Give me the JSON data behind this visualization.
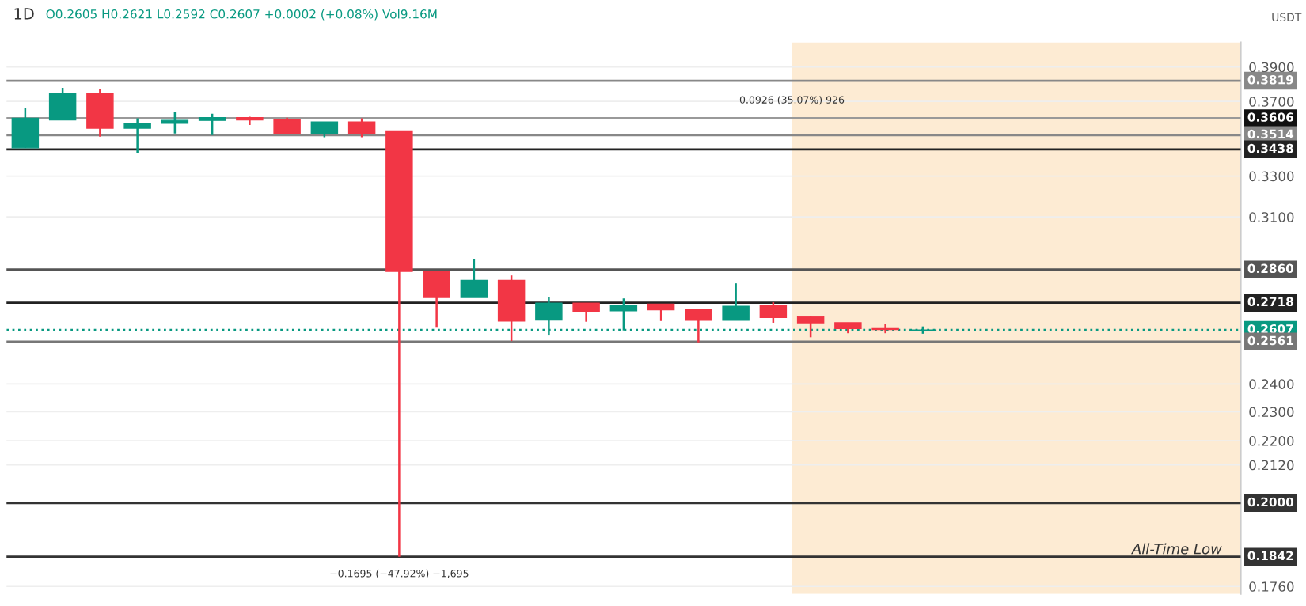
{
  "chart_data": {
    "type": "candlestick",
    "title": "1D",
    "subtitle": "O0.2605 H0.2621 L0.2592 C0.2607 +0.0002 (+0.08%) Vol9.16M",
    "ylabel": "USDT",
    "categories": [
      null,
      null,
      null,
      null,
      null,
      null,
      null,
      null,
      null,
      null,
      null,
      null,
      null,
      null,
      null,
      null,
      null,
      null,
      null,
      null,
      null,
      null,
      null,
      null,
      null,
      null,
      null,
      null,
      null,
      null,
      null,
      null,
      null
    ],
    "ohlc": [
      [
        0.3446,
        0.3663,
        0.3446,
        0.3606
      ],
      [
        0.3597,
        0.3778,
        0.3597,
        0.3745
      ],
      [
        0.3745,
        0.377,
        0.3506,
        0.3551
      ],
      [
        0.3551,
        0.3606,
        0.3416,
        0.3578
      ],
      [
        0.3578,
        0.3639,
        0.3523,
        0.3594
      ],
      [
        0.3594,
        0.3631,
        0.3514,
        0.3609
      ],
      [
        0.3609,
        0.3614,
        0.3569,
        0.3597
      ],
      [
        0.3597,
        0.3609,
        0.3517,
        0.3523
      ],
      [
        0.3523,
        0.3585,
        0.3502,
        0.3585
      ],
      [
        0.3585,
        0.3606,
        0.3502,
        0.3523
      ],
      [
        0.3537,
        0.3537,
        0.1842,
        0.2852
      ],
      [
        0.2852,
        0.2852,
        0.2619,
        0.274
      ],
      [
        0.274,
        0.2907,
        0.274,
        0.2813
      ],
      [
        0.2813,
        0.2834,
        0.2563,
        0.2643
      ],
      [
        0.2647,
        0.2743,
        0.2585,
        0.2716
      ],
      [
        0.2716,
        0.2716,
        0.264,
        0.268
      ],
      [
        0.2685,
        0.2736,
        0.2605,
        0.2705
      ],
      [
        0.2712,
        0.2712,
        0.2643,
        0.2689
      ],
      [
        0.2692,
        0.2692,
        0.2558,
        0.2646
      ],
      [
        0.2646,
        0.28,
        0.2646,
        0.2703
      ],
      [
        0.2705,
        0.272,
        0.2636,
        0.2657
      ],
      [
        0.2661,
        0.2661,
        0.2578,
        0.2636
      ],
      [
        0.2636,
        0.2636,
        0.2594,
        0.2613
      ],
      [
        0.2615,
        0.2631,
        0.2594,
        0.2609
      ],
      [
        0.2605,
        0.2621,
        0.2592,
        0.2607
      ],
      null,
      null,
      null,
      null,
      null,
      null,
      null,
      null
    ],
    "colors": [
      "#089981",
      "#089981",
      "#f23645",
      "#089981",
      "#089981",
      "#089981",
      "#f23645",
      "#f23645",
      "#089981",
      "#f23645",
      "#f23645",
      "#f23645",
      "#089981",
      "#f23645",
      "#089981",
      "#f23645",
      "#089981",
      "#f23645",
      "#f23645",
      "#089981",
      "#f23645",
      "#f23645",
      "#f23645",
      "#f23645",
      "#089981",
      null,
      null,
      null,
      null,
      null,
      null,
      null,
      null
    ],
    "ylim": [
      0.174,
      0.405
    ],
    "log": true,
    "yticks": [
      {
        "value": 0.39,
        "label": "0.3900"
      },
      {
        "value": 0.37,
        "label": "0.3700"
      },
      {
        "value": 0.33,
        "label": "0.3300"
      },
      {
        "value": 0.31,
        "label": "0.3100"
      },
      {
        "value": 0.24,
        "label": "0.2400"
      },
      {
        "value": 0.23,
        "label": "0.2300"
      },
      {
        "value": 0.22,
        "label": "0.2200"
      },
      {
        "value": 0.212,
        "label": "0.2120"
      },
      {
        "value": 0.176,
        "label": "0.1760"
      }
    ],
    "tick_labels": "y",
    "grid": true,
    "ref_lines": [
      {
        "axis": "y",
        "value": 0.3819,
        "label": "0.3819",
        "color": "#888888"
      },
      {
        "axis": "y",
        "value": 0.3606,
        "label": "0.3606",
        "color": "#999999"
      },
      {
        "axis": "y",
        "value": 0.3514,
        "label": "0.3514",
        "color": "#888888"
      },
      {
        "axis": "y",
        "value": 0.3438,
        "label": "0.3438",
        "color": "#222222"
      },
      {
        "axis": "y",
        "value": 0.286,
        "label": "0.2860",
        "color": "#555555"
      },
      {
        "axis": "y",
        "value": 0.2718,
        "label": "0.2718",
        "color": "#222222"
      },
      {
        "axis": "y",
        "value": 0.2607,
        "label": "0.2607",
        "color": "#089981",
        "line_style": "dotted"
      },
      {
        "axis": "y",
        "value": 0.2561,
        "label": "0.2561",
        "color": "#777777"
      },
      {
        "axis": "y",
        "value": 0.2,
        "label": "0.2000",
        "color": "#333333"
      },
      {
        "axis": "y",
        "value": 0.1842,
        "label": "0.1842",
        "color": "#333333"
      }
    ],
    "annotations": [
      {
        "text": "0.0926 (35.07%) 926",
        "y": 0.3606
      },
      {
        "text": "−0.1695 (−47.92%) −1,695",
        "y": 0.1842
      },
      {
        "text": "All-Time Low",
        "y": 0.1842
      }
    ]
  }
}
